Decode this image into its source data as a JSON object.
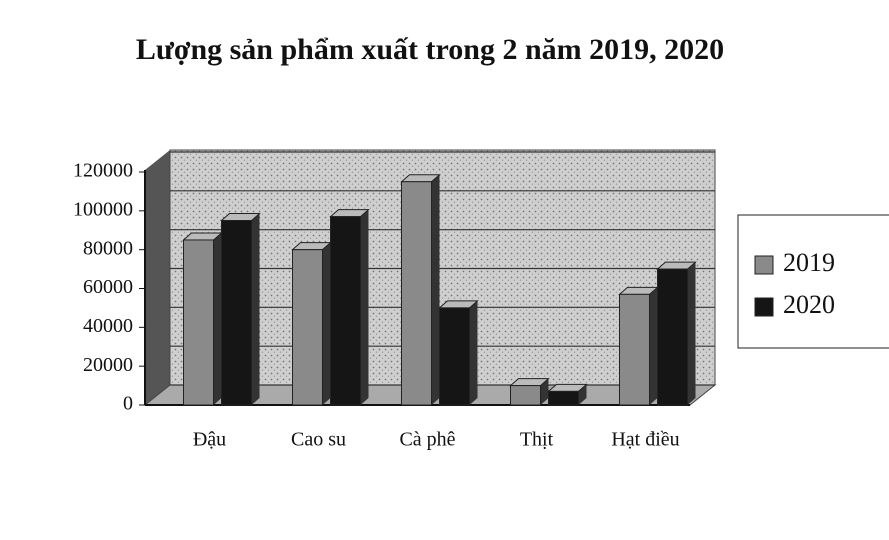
{
  "chart_data": {
    "type": "bar",
    "title": "Lượng sản phẩm xuất trong 2 năm 2019, 2020",
    "categories": [
      "Đậu",
      "Cao su",
      "Cà phê",
      "Thịt",
      "Hạt điều"
    ],
    "series": [
      {
        "name": "2019",
        "color": "#8a8a8a",
        "values": [
          85000,
          80000,
          115000,
          10000,
          57000
        ]
      },
      {
        "name": "2020",
        "color": "#151515",
        "values": [
          95000,
          97000,
          50000,
          7000,
          70000
        ]
      }
    ],
    "ylim": [
      0,
      120000
    ],
    "yticks": [
      0,
      20000,
      40000,
      60000,
      80000,
      100000,
      120000
    ],
    "grid": true,
    "legend": "right"
  }
}
